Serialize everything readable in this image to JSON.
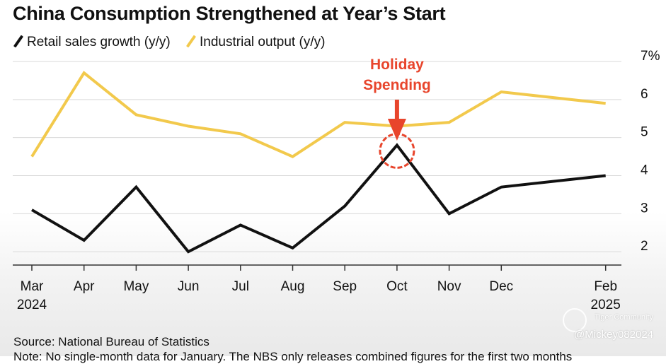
{
  "title": "China Consumption Strengthened at Year’s Start",
  "legend": [
    {
      "label": "Retail sales growth (y/y)",
      "color": "#111111"
    },
    {
      "label": "Industrial output (y/y)",
      "color": "#f2c94c"
    }
  ],
  "annotation": {
    "line1": "Holiday",
    "line2": "Spending",
    "color": "#e8452c"
  },
  "source": "Source: National Bureau of Statistics",
  "note": "Note: No single-month data for January. The NBS only releases combined figures for the first two months",
  "watermark": {
    "community": "Tiger Community",
    "user": "@Mickey082024"
  },
  "chart_data": {
    "type": "line",
    "title": "China Consumption Strengthened at Year’s Start",
    "x_labels": [
      "Mar",
      "Apr",
      "May",
      "Jun",
      "Jul",
      "Aug",
      "Sep",
      "Oct",
      "Nov",
      "Dec",
      "Feb"
    ],
    "x_sublabels": {
      "Mar": "2024",
      "Feb": "2025"
    },
    "x_index": [
      0,
      1,
      2,
      3,
      4,
      5,
      6,
      7,
      8,
      9,
      11
    ],
    "y_ticks": [
      2,
      3,
      4,
      5,
      6,
      7
    ],
    "y_tick_labels": [
      "2",
      "3",
      "4",
      "5",
      "6",
      "7%"
    ],
    "ylim": [
      1.65,
      7
    ],
    "y_axis_side": "right",
    "grid": true,
    "series": [
      {
        "name": "Retail sales growth (y/y)",
        "color": "#111111",
        "values": [
          3.1,
          2.3,
          3.7,
          2.0,
          2.7,
          2.1,
          3.2,
          4.8,
          3.0,
          3.7,
          4.0
        ]
      },
      {
        "name": "Industrial output (y/y)",
        "color": "#f2c94c",
        "values": [
          4.5,
          6.7,
          5.6,
          5.3,
          5.1,
          4.5,
          5.4,
          5.3,
          5.4,
          6.2,
          5.9
        ]
      }
    ],
    "highlight": {
      "series": "Retail sales growth (y/y)",
      "category": "Oct"
    }
  }
}
